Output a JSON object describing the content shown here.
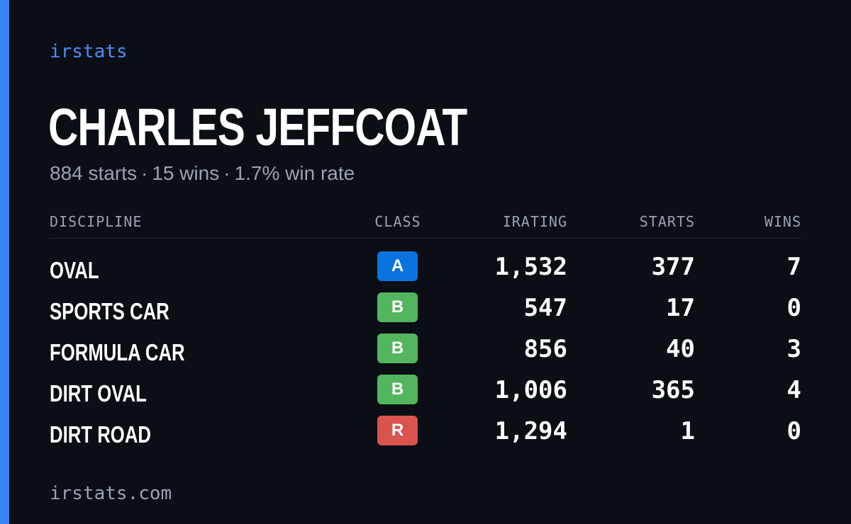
{
  "brand": "irstats",
  "player": {
    "name": "CHARLES JEFFCOAT",
    "starts_text": "884 starts",
    "wins_text": "15 wins",
    "winrate_text": "1.7% win rate",
    "separator": "·"
  },
  "table": {
    "headers": {
      "discipline": "DISCIPLINE",
      "class": "CLASS",
      "irating": "IRATING",
      "starts": "STARTS",
      "wins": "WINS"
    },
    "rows": [
      {
        "discipline": "OVAL",
        "class": "A",
        "class_color": "#0a73e0",
        "irating": "1,532",
        "starts": "377",
        "wins": "7"
      },
      {
        "discipline": "SPORTS CAR",
        "class": "B",
        "class_color": "#53b55e",
        "irating": "547",
        "starts": "17",
        "wins": "0"
      },
      {
        "discipline": "FORMULA CAR",
        "class": "B",
        "class_color": "#53b55e",
        "irating": "856",
        "starts": "40",
        "wins": "3"
      },
      {
        "discipline": "DIRT OVAL",
        "class": "B",
        "class_color": "#53b55e",
        "irating": "1,006",
        "starts": "365",
        "wins": "4"
      },
      {
        "discipline": "DIRT ROAD",
        "class": "R",
        "class_color": "#d9534f",
        "irating": "1,294",
        "starts": "1",
        "wins": "0"
      }
    ]
  },
  "footer": {
    "url": "irstats.com"
  },
  "colors": {
    "background": "#0b0e15",
    "accent": "#3b82f6",
    "muted_text": "#9aa3b2"
  }
}
